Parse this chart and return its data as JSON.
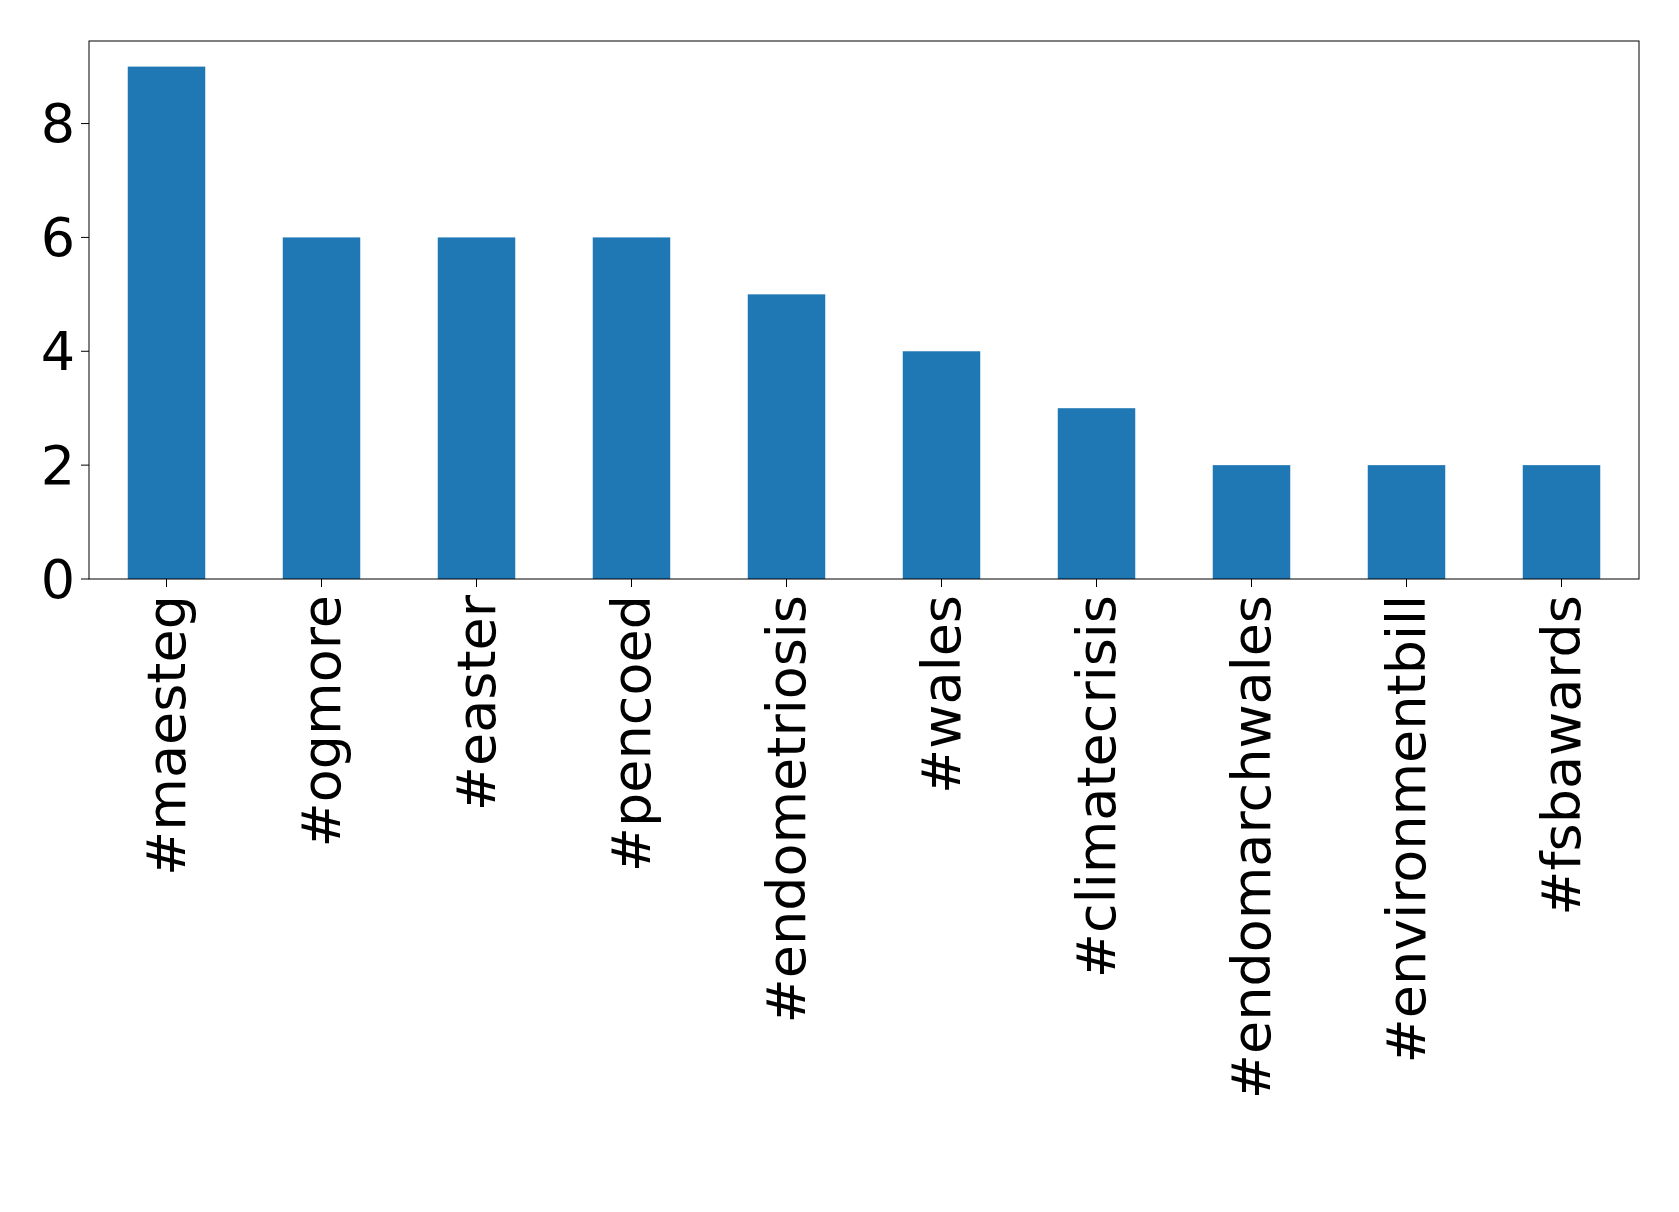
{
  "chart_data": {
    "type": "bar",
    "categories": [
      "#maesteg",
      "#ogmore",
      "#easter",
      "#pencoed",
      "#endometriosis",
      "#wales",
      "#climatecrisis",
      "#endomarchwales",
      "#environmentbill",
      "#fsbawards"
    ],
    "values": [
      9,
      6,
      6,
      6,
      5,
      4,
      3,
      2,
      2,
      2
    ],
    "color": "#1f77b4",
    "ylim": [
      0,
      9.45
    ],
    "yticks": [
      0,
      2,
      4,
      6,
      8
    ],
    "grid": false
  }
}
